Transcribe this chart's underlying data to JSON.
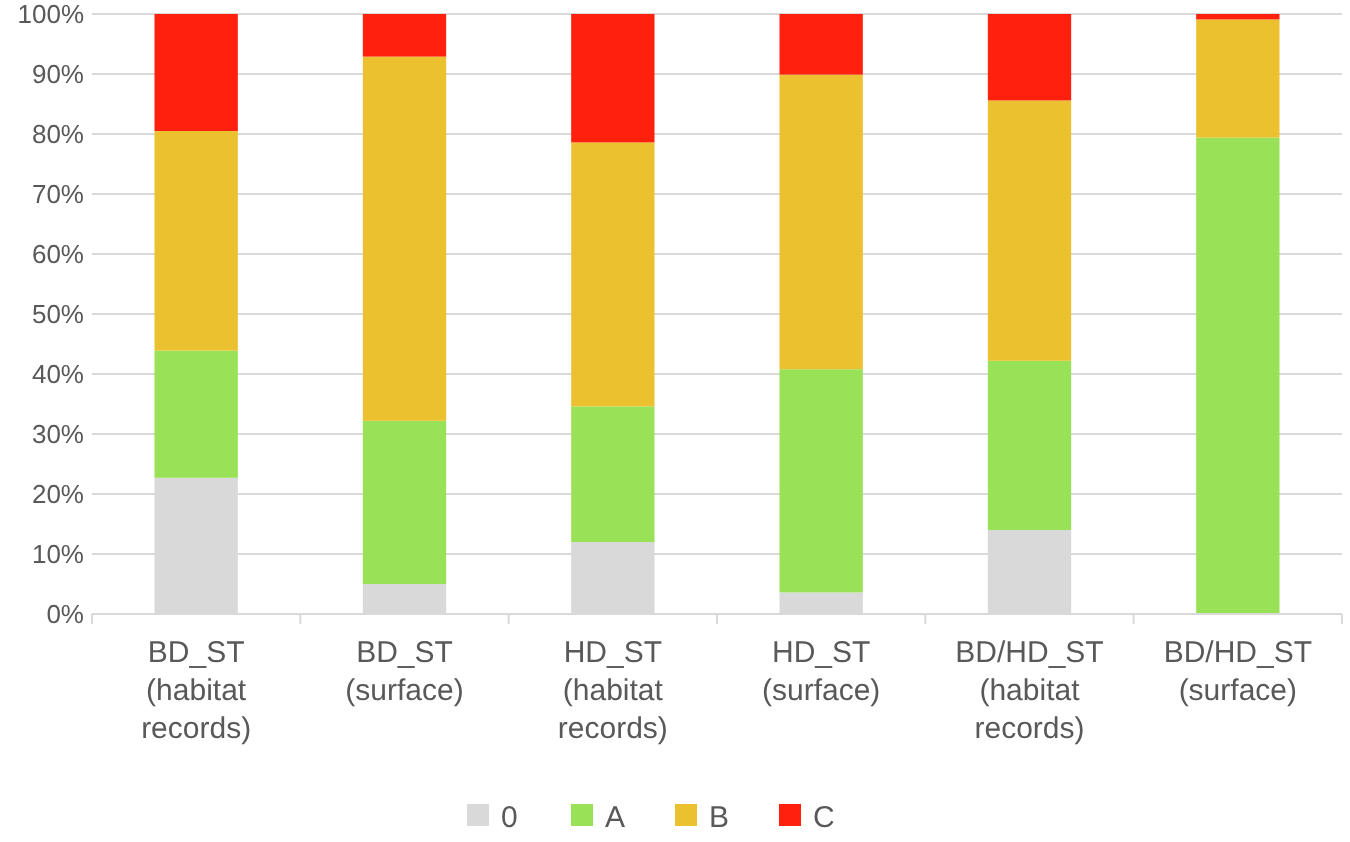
{
  "chart_data": {
    "type": "bar",
    "stacked": true,
    "categories": [
      "BD_ST (habitat records)",
      "BD_ST (surface)",
      "HD_ST (habitat records)",
      "HD_ST (surface)",
      "BD/HD_ST (habitat records)",
      "BD/HD_ST (surface)"
    ],
    "series": [
      {
        "name": "0",
        "color": "#d9d9d9",
        "values": [
          22.7,
          5.0,
          12.0,
          3.6,
          14.0,
          0
        ]
      },
      {
        "name": "A",
        "color": "#99e157",
        "values": [
          21.2,
          27.2,
          22.6,
          37.2,
          28.2,
          79.4
        ]
      },
      {
        "name": "B",
        "color": "#ebc12f",
        "values": [
          36.6,
          60.7,
          44.0,
          49.1,
          43.4,
          19.7
        ]
      },
      {
        "name": "C",
        "color": "#ff200e",
        "values": [
          19.5,
          7.1,
          21.4,
          10.1,
          14.4,
          0.9
        ]
      }
    ],
    "ylim": [
      0,
      100
    ],
    "yticks": [
      {
        "value": 0,
        "label": "0%"
      },
      {
        "value": 10,
        "label": "10%"
      },
      {
        "value": 20,
        "label": "20%"
      },
      {
        "value": 30,
        "label": "30%"
      },
      {
        "value": 40,
        "label": "40%"
      },
      {
        "value": 50,
        "label": "50%"
      },
      {
        "value": 60,
        "label": "60%"
      },
      {
        "value": 70,
        "label": "70%"
      },
      {
        "value": 80,
        "label": "80%"
      },
      {
        "value": 90,
        "label": "90%"
      },
      {
        "value": 100,
        "label": "100%"
      }
    ],
    "grid": "y",
    "legend": "bottom"
  }
}
